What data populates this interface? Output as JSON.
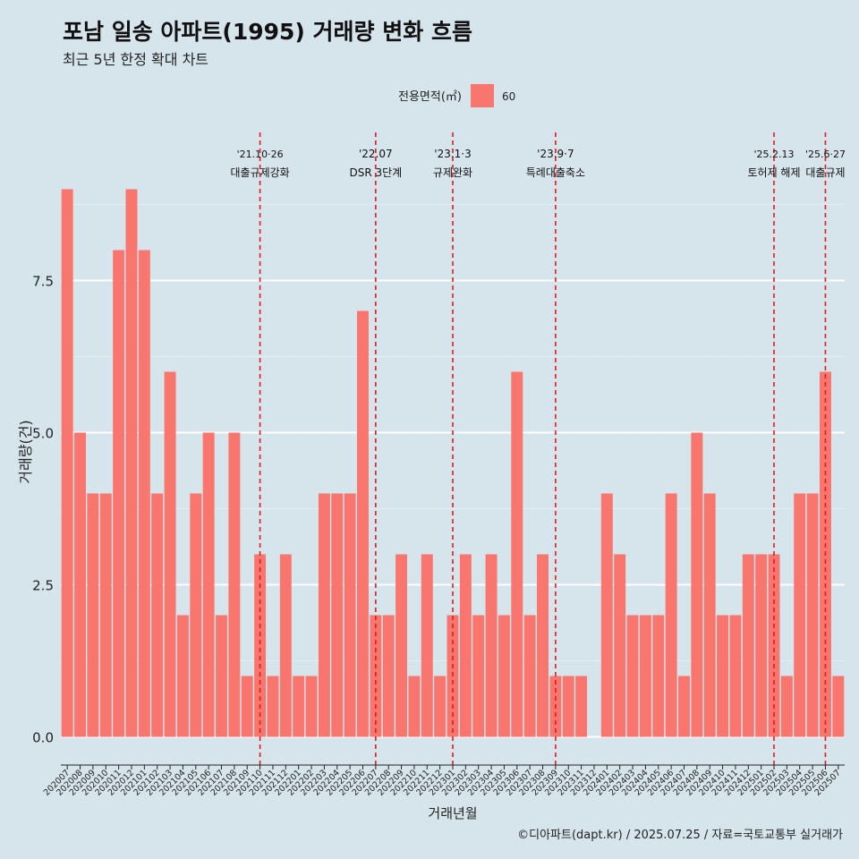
{
  "chart_data": {
    "type": "bar",
    "title": "포남 일송 아파트(1995) 거래량 변화 흐름",
    "subtitle": "최근 5년 한정 확대 차트",
    "xlabel": "거래년월",
    "ylabel": "거래량(건)",
    "legend": {
      "title": "전용면적(㎡)",
      "position": "top",
      "entries": [
        {
          "name": "60",
          "color": "#f8766d"
        }
      ]
    },
    "ylim": [
      -0.9,
      9.0
    ],
    "yticks": [
      0.0,
      2.5,
      5.0,
      7.5
    ],
    "ytick_labels": [
      "0.0",
      "2.5",
      "5.0",
      "7.5"
    ],
    "grid": true,
    "categories": [
      "202007",
      "202008",
      "202009",
      "202010",
      "202011",
      "202012",
      "202101",
      "202102",
      "202103",
      "202104",
      "202105",
      "202106",
      "202107",
      "202108",
      "202109",
      "202110",
      "202111",
      "202112",
      "202201",
      "202202",
      "202203",
      "202204",
      "202205",
      "202206",
      "202207",
      "202208",
      "202209",
      "202210",
      "202211",
      "202212",
      "202301",
      "202302",
      "202303",
      "202304",
      "202305",
      "202306",
      "202307",
      "202308",
      "202309",
      "202310",
      "202311",
      "202312",
      "202401",
      "202402",
      "202403",
      "202404",
      "202405",
      "202406",
      "202407",
      "202408",
      "202409",
      "202410",
      "202411",
      "202412",
      "202501",
      "202502",
      "202503",
      "202504",
      "202505",
      "202506",
      "202507"
    ],
    "series": [
      {
        "name": "60",
        "values": [
          9,
          5,
          4,
          4,
          8,
          9,
          8,
          4,
          6,
          2,
          4,
          5,
          2,
          5,
          1,
          3,
          1,
          3,
          1,
          1,
          4,
          4,
          4,
          7,
          2,
          2,
          3,
          1,
          3,
          1,
          2,
          3,
          2,
          3,
          2,
          6,
          2,
          3,
          1,
          1,
          1,
          0,
          4,
          3,
          2,
          2,
          2,
          4,
          1,
          5,
          4,
          2,
          2,
          3,
          3,
          3,
          1,
          4,
          4,
          6,
          1
        ]
      }
    ],
    "annotations": [
      {
        "x_index": 15.5,
        "date": "'21.10·26",
        "label": "대출규제강화"
      },
      {
        "x_index": 24.5,
        "date": "'22.07",
        "label": "DSR 3단계"
      },
      {
        "x_index": 30.5,
        "date": "'23.1·3",
        "label": "규제완화"
      },
      {
        "x_index": 38.5,
        "date": "'23.9·7",
        "label": "특례대출축소"
      },
      {
        "x_index": 55.5,
        "date": "'25.2.13",
        "label": "토허제 해제"
      },
      {
        "x_index": 59.5,
        "date": "'25.6·27",
        "label": "대출규제"
      }
    ],
    "bar_color": "#f8766d",
    "vline_color": "#e41a1c"
  },
  "credit": "©디아파트(dapt.kr) / 2025.07.25 / 자료=국토교통부 실거래가"
}
